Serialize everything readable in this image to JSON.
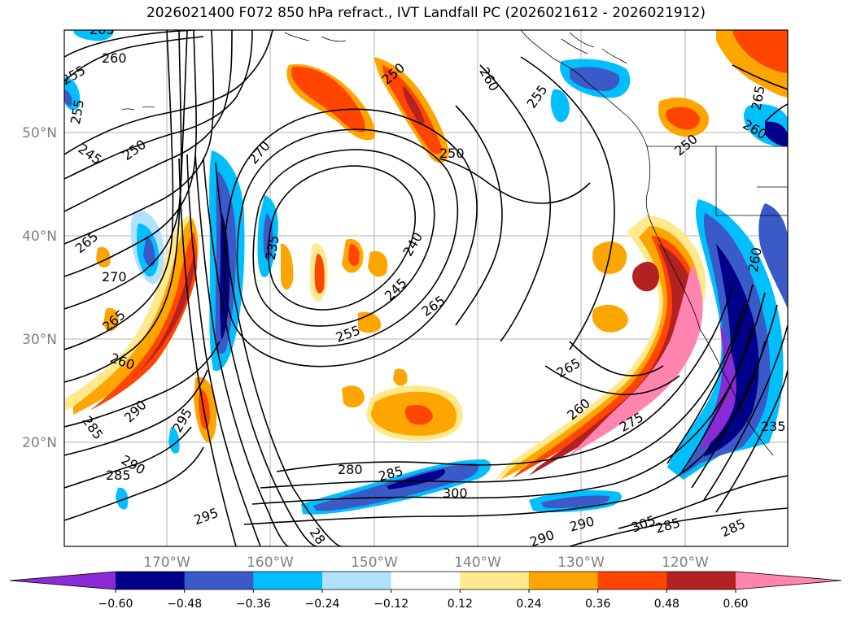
{
  "title": "2026021400 F072 850 hPa refract., IVT Landfall PC (2026021612 - 2026021912)",
  "map": {
    "lat_labels": [
      "50°N",
      "40°N",
      "30°N",
      "20°N"
    ],
    "lon_labels": [
      "170°W",
      "160°W",
      "150°W",
      "140°W",
      "130°W",
      "120°W"
    ],
    "contour_labels": [
      "265",
      "260",
      "255",
      "255",
      "245",
      "250",
      "265",
      "270",
      "265",
      "260",
      "290",
      "285",
      "285",
      "290",
      "295",
      "295",
      "270",
      "235",
      "250",
      "250",
      "240",
      "245",
      "265",
      "255",
      "280",
      "285",
      "300",
      "260",
      "255",
      "265",
      "260",
      "265",
      "260",
      "275",
      "260",
      "250",
      "235",
      "285",
      "290",
      "305",
      "285",
      "290",
      "28"
    ],
    "colors": {
      "neg_0_60": "#8B2BD6",
      "neg_0_48": "#00008B",
      "neg_0_36": "#3A5AC8",
      "neg_0_24": "#00BFFF",
      "neg_0_12": "#B0E2FF",
      "pos_0_12": "#FFE98C",
      "pos_0_24": "#FFA500",
      "pos_0_36": "#FF4500",
      "pos_0_48": "#B22222",
      "pos_0_60": "#FF85B0"
    }
  },
  "colorbar": {
    "tick_labels": [
      "−0.60",
      "−0.48",
      "−0.36",
      "−0.24",
      "−0.12",
      "0.12",
      "0.24",
      "0.36",
      "0.48",
      "0.60"
    ],
    "colors": [
      "#8B2BD6",
      "#00008B",
      "#3A5AC8",
      "#00BFFF",
      "#B0E2FF",
      "#FFFFFF",
      "#FFE98C",
      "#FFA500",
      "#FF4500",
      "#B22222",
      "#FF85B0"
    ]
  }
}
